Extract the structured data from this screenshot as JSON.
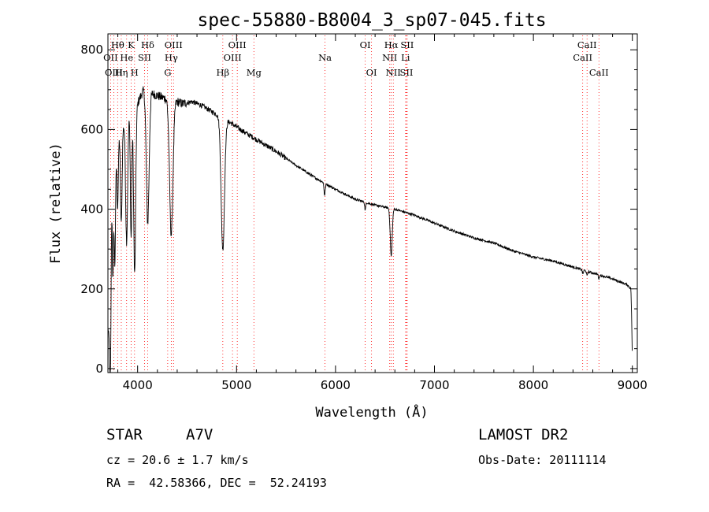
{
  "chart_data": {
    "type": "line",
    "title": "spec-55880-B8004_3_sp07-045.fits",
    "xlabel": "Wavelength (Å)",
    "ylabel": "Flux (relative)",
    "xlim": [
      3700,
      9050
    ],
    "ylim": [
      -10,
      840
    ],
    "xticks": [
      4000,
      5000,
      6000,
      7000,
      8000,
      9000
    ],
    "yticks": [
      0,
      200,
      400,
      600,
      800
    ],
    "grid": false,
    "line_color": "#000000",
    "marker_color": "#ff0000",
    "continuum": [
      [
        3710,
        100
      ],
      [
        3740,
        480
      ],
      [
        3780,
        560
      ],
      [
        3830,
        600
      ],
      [
        3890,
        620
      ],
      [
        3940,
        650
      ],
      [
        3990,
        660
      ],
      [
        4060,
        700
      ],
      [
        4150,
        690
      ],
      [
        4250,
        680
      ],
      [
        4350,
        675
      ],
      [
        4450,
        665
      ],
      [
        4550,
        670
      ],
      [
        4650,
        660
      ],
      [
        4750,
        645
      ],
      [
        4850,
        630
      ],
      [
        4950,
        615
      ],
      [
        5050,
        598
      ],
      [
        5200,
        575
      ],
      [
        5400,
        545
      ],
      [
        5600,
        510
      ],
      [
        5800,
        478
      ],
      [
        6000,
        450
      ],
      [
        6200,
        425
      ],
      [
        6400,
        410
      ],
      [
        6600,
        400
      ],
      [
        6800,
        385
      ],
      [
        7000,
        365
      ],
      [
        7200,
        345
      ],
      [
        7400,
        328
      ],
      [
        7600,
        315
      ],
      [
        7800,
        295
      ],
      [
        8000,
        280
      ],
      [
        8200,
        270
      ],
      [
        8400,
        255
      ],
      [
        8600,
        240
      ],
      [
        8800,
        225
      ],
      [
        8950,
        210
      ],
      [
        8985,
        200
      ],
      [
        8992,
        140
      ],
      [
        9000,
        10
      ]
    ],
    "absorption_features": [
      [
        3725,
        320,
        7
      ],
      [
        3750,
        270,
        6
      ],
      [
        3770,
        280,
        7
      ],
      [
        3798,
        170,
        7
      ],
      [
        3835,
        240,
        8
      ],
      [
        3889,
        300,
        10
      ],
      [
        3934,
        320,
        7
      ],
      [
        3970,
        420,
        10
      ],
      [
        4102,
        330,
        14
      ],
      [
        4340,
        340,
        17
      ],
      [
        4861,
        330,
        17
      ],
      [
        5890,
        30,
        6
      ],
      [
        6300,
        20,
        5
      ],
      [
        6563,
        120,
        10
      ],
      [
        8500,
        10,
        5
      ],
      [
        8542,
        12,
        5
      ],
      [
        8662,
        10,
        5
      ]
    ],
    "spectral_lines": [
      {
        "name": "Hθ",
        "wavelength": 3798,
        "row": 0
      },
      {
        "name": "OII",
        "wavelength": 3727,
        "row": 1
      },
      {
        "name": "OIII",
        "wavelength": 3760,
        "row": 2
      },
      {
        "name": "Hη",
        "wavelength": 3835,
        "row": 2
      },
      {
        "name": "He",
        "wavelength": 3889,
        "row": 1
      },
      {
        "name": "K",
        "wavelength": 3934,
        "row": 0
      },
      {
        "name": "H",
        "wavelength": 3969,
        "row": 2
      },
      {
        "name": "SII",
        "wavelength": 4070,
        "row": 1
      },
      {
        "name": "Hδ",
        "wavelength": 4102,
        "row": 0
      },
      {
        "name": "OIII",
        "wavelength": 4363,
        "row": 0
      },
      {
        "name": "Hγ",
        "wavelength": 4340,
        "row": 1
      },
      {
        "name": "G",
        "wavelength": 4304,
        "row": 2
      },
      {
        "name": "Hβ",
        "wavelength": 4861,
        "row": 2
      },
      {
        "name": "OIII",
        "wavelength": 5007,
        "row": 0
      },
      {
        "name": "OIII",
        "wavelength": 4959,
        "row": 1
      },
      {
        "name": "Mg",
        "wavelength": 5175,
        "row": 2
      },
      {
        "name": "Na",
        "wavelength": 5894,
        "row": 1
      },
      {
        "name": "OI",
        "wavelength": 6300,
        "row": 0
      },
      {
        "name": "OI",
        "wavelength": 6364,
        "row": 2
      },
      {
        "name": "Hα",
        "wavelength": 6563,
        "row": 0
      },
      {
        "name": "SII",
        "wavelength": 6724,
        "row": 0
      },
      {
        "name": "NII",
        "wavelength": 6548,
        "row": 1
      },
      {
        "name": "Li",
        "wavelength": 6708,
        "row": 1
      },
      {
        "name": "NII",
        "wavelength": 6584,
        "row": 2
      },
      {
        "name": "SII",
        "wavelength": 6717,
        "row": 2
      },
      {
        "name": "CaII",
        "wavelength": 8542,
        "row": 0
      },
      {
        "name": "CaII",
        "wavelength": 8498,
        "row": 1
      },
      {
        "name": "CaII",
        "wavelength": 8662,
        "row": 2
      }
    ]
  },
  "info": {
    "object_class": "STAR",
    "subclass": "A7V",
    "survey": "LAMOST DR2",
    "redshift_text": "cz = 20.6 ± 1.7 km/s",
    "obs_date_text": "Obs-Date: 20111114",
    "coords_text": "RA =  42.58366, DEC =  52.24193"
  }
}
